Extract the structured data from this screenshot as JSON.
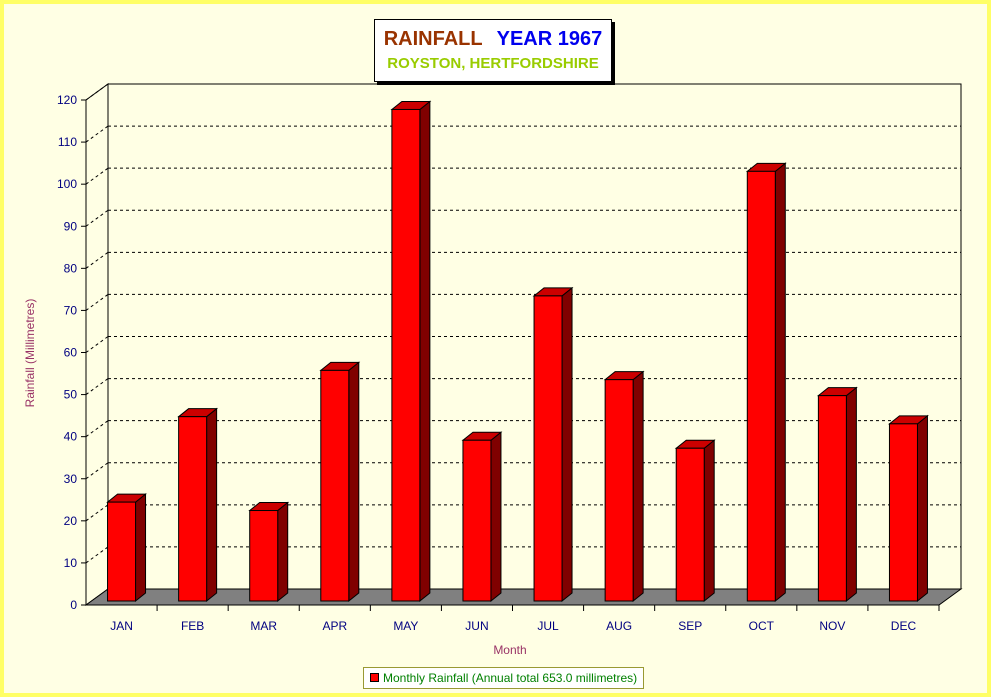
{
  "title": {
    "main": "RAINFALL",
    "year": "YEAR 1967",
    "subtitle": "ROYSTON, HERTFORDSHIRE"
  },
  "legend": {
    "label": "Monthly Rainfall (Annual total 653.0 millimetres)"
  },
  "colors": {
    "bar_front": "#ff0000",
    "bar_side": "#800000",
    "bar_top": "#cc0000",
    "floor": "#808080",
    "wall": "#ffffe4",
    "border": "#ffff66",
    "axis_label": "#993366",
    "tick_label": "#000080"
  },
  "chart_data": {
    "type": "bar",
    "title": "RAINFALL  YEAR 1967",
    "subtitle": "ROYSTON, HERTFORDSHIRE",
    "xlabel": "Month",
    "ylabel": "Rainfall  (Millimetres)",
    "ylim": [
      0,
      120
    ],
    "yticks": [
      0,
      10,
      20,
      30,
      40,
      50,
      60,
      70,
      80,
      90,
      100,
      110,
      120
    ],
    "grid": true,
    "legend_position": "bottom",
    "categories": [
      "JAN",
      "FEB",
      "MAR",
      "APR",
      "MAY",
      "JUN",
      "JUL",
      "AUG",
      "SEP",
      "OCT",
      "NOV",
      "DEC"
    ],
    "series": [
      {
        "name": "Monthly Rainfall (Annual total 653.0 millimetres)",
        "values": [
          23.5,
          43.8,
          21.5,
          54.8,
          116.8,
          38.2,
          72.5,
          52.6,
          36.3,
          102.1,
          48.8,
          42.1
        ]
      }
    ]
  }
}
